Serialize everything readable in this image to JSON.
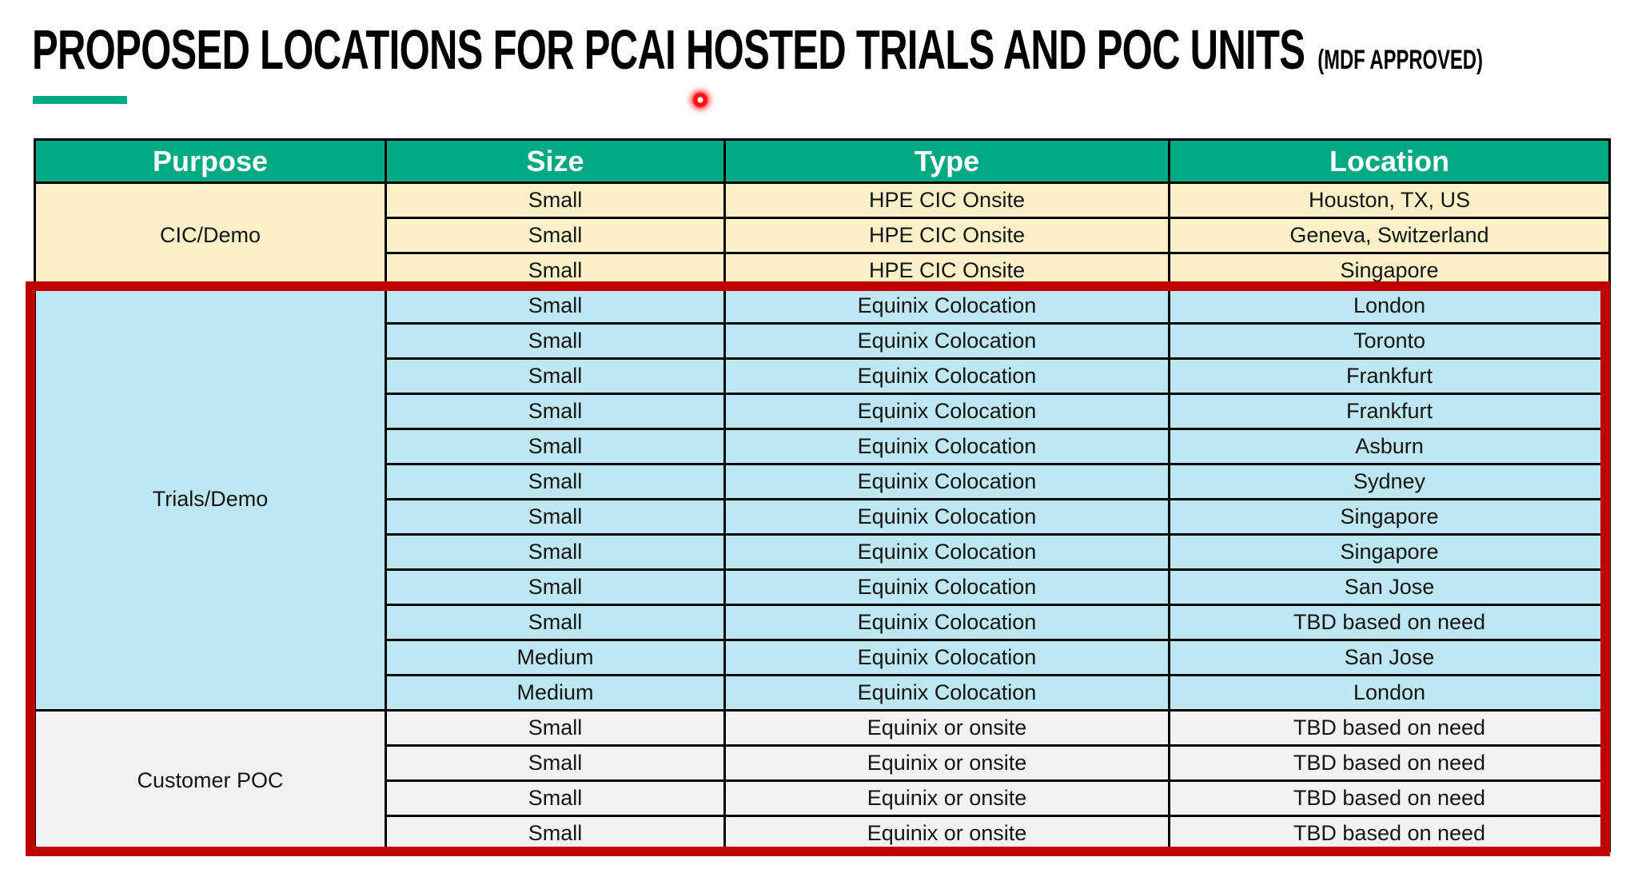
{
  "slide": {
    "title": "PROPOSED LOCATIONS FOR PCAI HOSTED TRIALS AND POC UNITS",
    "title_suffix": "(MDF APPROVED)"
  },
  "table": {
    "headers": [
      "Purpose",
      "Size",
      "Type",
      "Location"
    ],
    "sections": [
      {
        "purpose": "CIC/Demo",
        "theme": "cream",
        "highlighted": false,
        "rows": [
          {
            "size": "Small",
            "type": "HPE CIC Onsite",
            "location": "Houston, TX, US"
          },
          {
            "size": "Small",
            "type": "HPE CIC Onsite",
            "location": "Geneva, Switzerland"
          },
          {
            "size": "Small",
            "type": "HPE CIC Onsite",
            "location": "Singapore"
          }
        ]
      },
      {
        "purpose": "Trials/Demo",
        "theme": "blue",
        "highlighted": true,
        "rows": [
          {
            "size": "Small",
            "type": "Equinix Colocation",
            "location": "London"
          },
          {
            "size": "Small",
            "type": "Equinix Colocation",
            "location": "Toronto"
          },
          {
            "size": "Small",
            "type": "Equinix Colocation",
            "location": "Frankfurt"
          },
          {
            "size": "Small",
            "type": "Equinix Colocation",
            "location": "Frankfurt"
          },
          {
            "size": "Small",
            "type": "Equinix Colocation",
            "location": "Asburn"
          },
          {
            "size": "Small",
            "type": "Equinix Colocation",
            "location": "Sydney"
          },
          {
            "size": "Small",
            "type": "Equinix Colocation",
            "location": "Singapore"
          },
          {
            "size": "Small",
            "type": "Equinix Colocation",
            "location": "Singapore"
          },
          {
            "size": "Small",
            "type": "Equinix Colocation",
            "location": "San Jose"
          },
          {
            "size": "Small",
            "type": "Equinix Colocation",
            "location": "TBD based on need"
          },
          {
            "size": "Medium",
            "type": "Equinix Colocation",
            "location": "San Jose"
          },
          {
            "size": "Medium",
            "type": "Equinix Colocation",
            "location": "London"
          }
        ]
      },
      {
        "purpose": "Customer POC",
        "theme": "gray",
        "highlighted": true,
        "rows": [
          {
            "size": "Small",
            "type": "Equinix or onsite",
            "location": "TBD based on need"
          },
          {
            "size": "Small",
            "type": "Equinix or onsite",
            "location": "TBD based on need"
          },
          {
            "size": "Small",
            "type": "Equinix or onsite",
            "location": "TBD based on need"
          },
          {
            "size": "Small",
            "type": "Equinix or onsite",
            "location": "TBD based on need"
          }
        ]
      }
    ]
  },
  "colors": {
    "accent-green": "#01A982",
    "header-green": "#01A982",
    "cream": "#FBF0C7",
    "blue": "#BEE7F1",
    "gray": "#F2F2F2",
    "highlight-red": "#C00000",
    "laser-red": "#FF1010"
  }
}
